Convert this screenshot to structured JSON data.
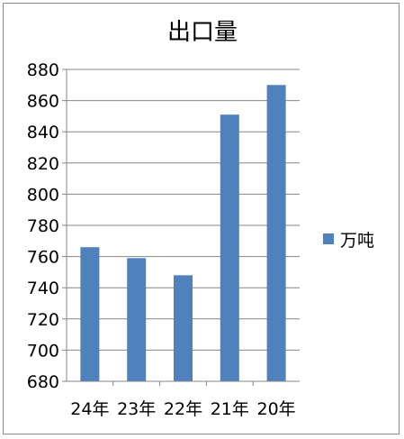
{
  "chart_data": {
    "type": "bar",
    "title": "出口量",
    "categories": [
      "24年",
      "23年",
      "22年",
      "21年",
      "20年"
    ],
    "series": [
      {
        "name": "万吨",
        "values": [
          766,
          759,
          748,
          851,
          870
        ]
      }
    ],
    "ylim": [
      680,
      880
    ],
    "yticks": [
      680,
      700,
      720,
      740,
      760,
      780,
      800,
      820,
      840,
      860,
      880
    ],
    "grid": true,
    "legend_position": "right",
    "bar_color": "#4f81bd",
    "grid_color": "#868686"
  }
}
